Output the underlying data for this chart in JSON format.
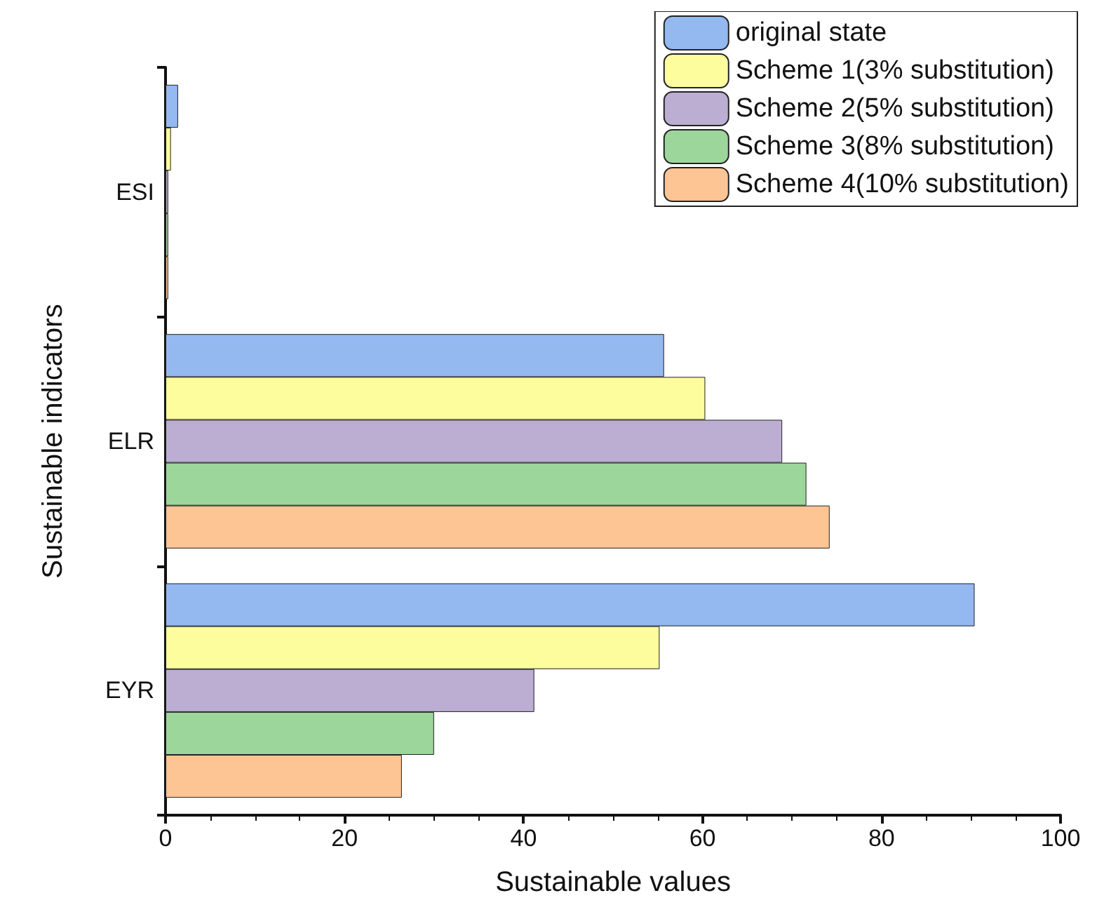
{
  "chart_data": {
    "type": "bar",
    "orientation": "horizontal",
    "xlabel": "Sustainable values",
    "ylabel": "Sustainable indicators",
    "categories": [
      "ESI",
      "ELR",
      "EYR"
    ],
    "series": [
      {
        "name": "original state",
        "color": "#94b8f0",
        "values": [
          1.4,
          55.7,
          90.4
        ]
      },
      {
        "name": "Scheme 1(3% substitution)",
        "color": "#fdfd9e",
        "values": [
          0.6,
          60.3,
          55.2
        ]
      },
      {
        "name": "Scheme 2(5% substitution)",
        "color": "#bcaed3",
        "values": [
          0.3,
          68.9,
          41.2
        ]
      },
      {
        "name": "Scheme 3(8% substitution)",
        "color": "#9dd69a",
        "values": [
          0.3,
          71.6,
          30.0
        ]
      },
      {
        "name": "Scheme 4(10% substitution)",
        "color": "#fdc594",
        "values": [
          0.3,
          74.2,
          26.4
        ]
      }
    ],
    "xlim": [
      0,
      100
    ],
    "xticks": [
      0,
      20,
      40,
      60,
      80,
      100
    ],
    "grid": false,
    "legend": "top right"
  }
}
